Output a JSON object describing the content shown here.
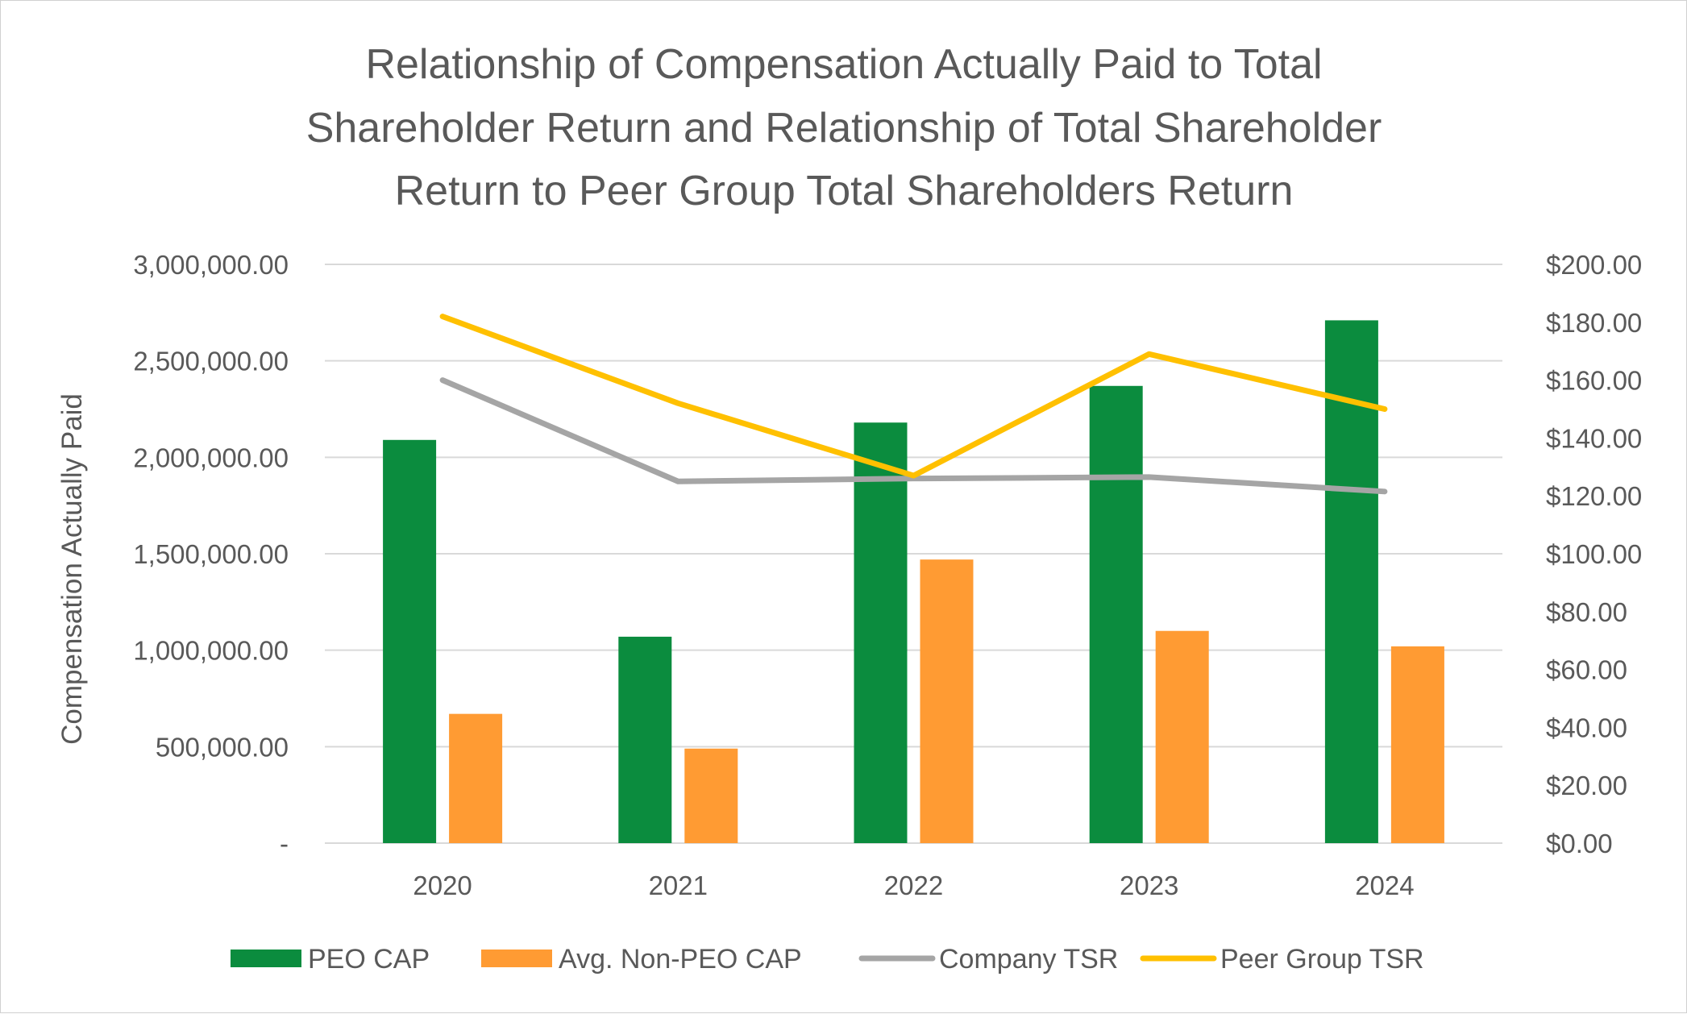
{
  "chart_data": {
    "type": "bar",
    "title_lines": [
      "Relationship of  Compensation Actually Paid to Total",
      "Shareholder Return and Relationship of Total Shareholder",
      "Return to Peer Group Total Shareholders Return"
    ],
    "ylabel": "Compensation Actually Paid",
    "ylabel_right": "",
    "categories": [
      "2020",
      "2021",
      "2022",
      "2023",
      "2024"
    ],
    "y_left": {
      "min": 0,
      "max": 3000000,
      "ticks": [
        0,
        500000,
        1000000,
        1500000,
        2000000,
        2500000,
        3000000
      ],
      "tick_labels": [
        "-",
        "500,000.00",
        "1,000,000.00",
        "1,500,000.00",
        "2,000,000.00",
        "2,500,000.00",
        "3,000,000.00"
      ]
    },
    "y_right": {
      "min": 0,
      "max": 200,
      "ticks": [
        0,
        20,
        40,
        60,
        80,
        100,
        120,
        140,
        160,
        180,
        200
      ],
      "tick_labels": [
        "$0.00",
        "$20.00",
        "$40.00",
        "$60.00",
        "$80.00",
        "$100.00",
        "$120.00",
        "$140.00",
        "$160.00",
        "$180.00",
        "$200.00"
      ]
    },
    "series": [
      {
        "name": "PEO CAP",
        "kind": "bar",
        "axis": "left",
        "color": "#0B8C3E",
        "values": [
          2090000,
          1070000,
          2180000,
          2370000,
          2710000
        ]
      },
      {
        "name": "Avg. Non-PEO CAP",
        "kind": "bar",
        "axis": "left",
        "color": "#FF9B33",
        "values": [
          670000,
          490000,
          1470000,
          1100000,
          1020000
        ]
      },
      {
        "name": "Company TSR",
        "kind": "line",
        "axis": "right",
        "color": "#A5A5A5",
        "values": [
          160,
          125,
          126,
          126.5,
          121.5
        ]
      },
      {
        "name": "Peer Group TSR",
        "kind": "line",
        "axis": "right",
        "color": "#FFC000",
        "values": [
          182,
          152,
          127,
          169,
          150
        ]
      }
    ],
    "grid": true,
    "legend_position": "bottom"
  }
}
